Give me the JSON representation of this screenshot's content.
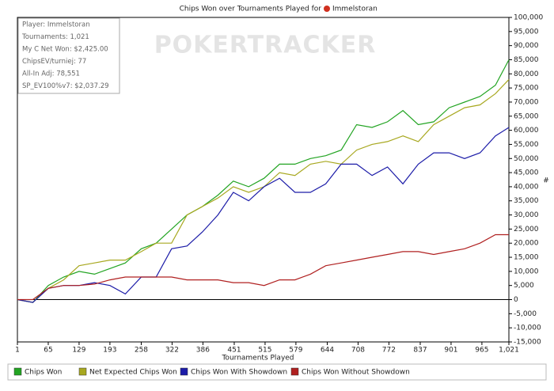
{
  "chart_data": {
    "type": "line",
    "title": "Chips Won over Tournaments Played for",
    "title_player": "Immelstoran",
    "watermark": "POKERTRACKER",
    "info": [
      "Player: Immelstoran",
      "Tournaments: 1,021",
      "My C Net Won: $2,425.00",
      "ChipsEV/turniej: 77",
      "All-In Adj: 78,551",
      "SP_EV100%v7: $2,037.29"
    ],
    "x_label": "Tournaments Played",
    "y_label": "#",
    "x": [
      1,
      33,
      65,
      97,
      129,
      161,
      193,
      225,
      258,
      289,
      321,
      353,
      385,
      417,
      449,
      481,
      513,
      545,
      577,
      609,
      641,
      673,
      705,
      737,
      769,
      801,
      833,
      865,
      897,
      929,
      961,
      993,
      1021
    ],
    "series": [
      {
        "name": "Chips Won",
        "color": "#22a422",
        "values": [
          0,
          -1000,
          5000,
          8000,
          10000,
          9000,
          11000,
          13000,
          18000,
          20000,
          25000,
          30000,
          33000,
          37000,
          42000,
          40000,
          43000,
          48000,
          48000,
          50000,
          51000,
          53000,
          62000,
          61000,
          63000,
          67000,
          62000,
          63000,
          68000,
          70000,
          72000,
          76000,
          85000
        ]
      },
      {
        "name": "Net Expected Chips Won",
        "color": "#a8a820",
        "values": [
          0,
          -1000,
          4000,
          7000,
          12000,
          13000,
          14000,
          14000,
          17000,
          20000,
          20000,
          30000,
          33000,
          36000,
          40000,
          38000,
          40000,
          45000,
          44000,
          48000,
          49000,
          48000,
          53000,
          55000,
          56000,
          58000,
          56000,
          62000,
          65000,
          68000,
          69000,
          73000,
          78000
        ]
      },
      {
        "name": "Chips Won With Showdown",
        "color": "#1c1ca8",
        "values": [
          0,
          -1000,
          4000,
          5000,
          5000,
          6000,
          5000,
          2000,
          8000,
          8000,
          18000,
          19000,
          24000,
          30000,
          38000,
          35000,
          40000,
          43000,
          38000,
          38000,
          41000,
          48000,
          48000,
          44000,
          47000,
          41000,
          48000,
          52000,
          52000,
          50000,
          52000,
          58000,
          61000
        ]
      },
      {
        "name": "Chips Won Without Showdown",
        "color": "#b02020",
        "values": [
          0,
          0,
          4000,
          5000,
          5000,
          5500,
          7000,
          8000,
          8000,
          8000,
          8000,
          7000,
          7000,
          7000,
          6000,
          6000,
          5000,
          7000,
          7000,
          9000,
          12000,
          13000,
          14000,
          15000,
          16000,
          17000,
          17000,
          16000,
          17000,
          18000,
          20000,
          23000,
          23000
        ]
      }
    ],
    "xlim": [
      1,
      1021
    ],
    "xticks": [
      1,
      65,
      129,
      193,
      258,
      322,
      386,
      451,
      515,
      579,
      644,
      708,
      772,
      837,
      901,
      965,
      {
        "value": 1021,
        "label": "1,021"
      }
    ],
    "ylim": [
      -15000,
      100000
    ],
    "yticks": [
      {
        "value": -15000,
        "label": "-15,000"
      },
      {
        "value": -10000,
        "label": "-10,000"
      },
      {
        "value": -5000,
        "label": "-5,000"
      },
      0,
      {
        "value": 5000,
        "label": "5,000"
      },
      {
        "value": 10000,
        "label": "10,000"
      },
      {
        "value": 15000,
        "label": "15,000"
      },
      {
        "value": 20000,
        "label": "20,000"
      },
      {
        "value": 25000,
        "label": "25,000"
      },
      {
        "value": 30000,
        "label": "30,000"
      },
      {
        "value": 35000,
        "label": "35,000"
      },
      {
        "value": 40000,
        "label": "40,000"
      },
      {
        "value": 45000,
        "label": "45,000"
      },
      {
        "value": 50000,
        "label": "50,000"
      },
      {
        "value": 55000,
        "label": "55,000"
      },
      {
        "value": 60000,
        "label": "60,000"
      },
      {
        "value": 65000,
        "label": "65,000"
      },
      {
        "value": 70000,
        "label": "70,000"
      },
      {
        "value": 75000,
        "label": "75,000"
      },
      {
        "value": 80000,
        "label": "80,000"
      },
      {
        "value": 85000,
        "label": "85,000"
      },
      {
        "value": 90000,
        "label": "90,000"
      },
      {
        "value": 95000,
        "label": "95,000"
      },
      {
        "value": 100000,
        "label": "100,000"
      }
    ],
    "legend": "bottom"
  }
}
